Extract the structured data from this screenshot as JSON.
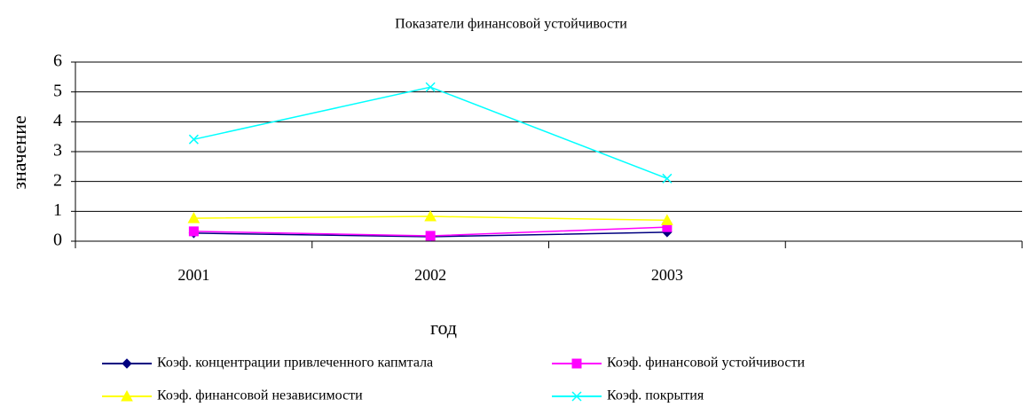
{
  "chart_data": {
    "type": "line",
    "title": "Показатели финансовой устойчивости",
    "xlabel": "год",
    "ylabel": "значение",
    "categories": [
      "2001",
      "2002",
      "2003",
      null
    ],
    "series": [
      {
        "name": "Коэф. концентрации привлеченного капмтала",
        "color": "#000080",
        "marker": "diamond",
        "values": [
          0.27,
          0.15,
          0.3,
          null
        ]
      },
      {
        "name": "Коэф. финансовой устойчивости",
        "color": "#ff00ff",
        "marker": "square",
        "values": [
          0.33,
          0.18,
          0.47,
          null
        ]
      },
      {
        "name": "Коэф. финансовой независимости",
        "color": "#ffff00",
        "marker": "triangle",
        "values": [
          0.77,
          0.83,
          0.7,
          null
        ]
      },
      {
        "name": "Коэф. покрытия",
        "color": "#00ffff",
        "marker": "x",
        "values": [
          3.41,
          5.16,
          2.1,
          null
        ]
      }
    ],
    "ylim": [
      0,
      6
    ],
    "yticks": [
      0,
      1,
      2,
      3,
      4,
      5,
      6
    ],
    "grid": true
  }
}
